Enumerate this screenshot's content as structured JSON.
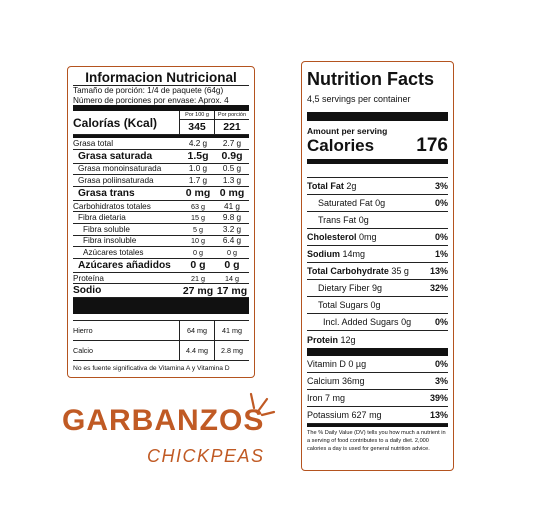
{
  "spanish_label": {
    "title": "Informacion Nutricional",
    "serving_size": "Tamaño de porción: 1/4 de paquete (64g)",
    "servings_per_container": "Número de porciones por envase:  Aprox. 4",
    "calories": {
      "label": "Calorías (Kcal)",
      "col1_header": "Por 100 g",
      "col2_header": "Por porción",
      "per_100g": "345",
      "per_serving": "221"
    },
    "rows": [
      {
        "name": "Grasa total",
        "per_100g": "4.2 g",
        "per_serving": "2.7 g"
      },
      {
        "name": "Grasa saturada",
        "per_100g": "1.5g",
        "per_serving": "0.9g"
      },
      {
        "name": "Grasa monoinsaturada",
        "per_100g": "1.0 g",
        "per_serving": "0.5 g"
      },
      {
        "name": "Grasa poliinsaturada",
        "per_100g": "1.7 g",
        "per_serving": "1.3 g"
      },
      {
        "name": "Grasa trans",
        "per_100g": "0 mg",
        "per_serving": "0 mg"
      },
      {
        "name": "Carbohidratos totales",
        "per_100g": "63 g",
        "per_serving": "41 g"
      },
      {
        "name": "Fibra dietaria",
        "per_100g": "15 g",
        "per_serving": "9.8 g"
      },
      {
        "name": "Fibra soluble",
        "per_100g": "5 g",
        "per_serving": "3.2 g"
      },
      {
        "name": "Fibra insoluble",
        "per_100g": "10 g",
        "per_serving": "6.4 g"
      },
      {
        "name": "Azúcares totales",
        "per_100g": "0 g",
        "per_serving": "0 g"
      },
      {
        "name": "Azúcares añadidos",
        "per_100g": "0 g",
        "per_serving": "0 g"
      },
      {
        "name": "Proteína",
        "per_100g": "21 g",
        "per_serving": "14 g"
      },
      {
        "name": "Sodio",
        "per_100g": "27 mg",
        "per_serving": "17 mg"
      }
    ],
    "minerals": [
      {
        "name": "Hierro",
        "per_100g": "64 mg",
        "per_serving": "41 mg"
      },
      {
        "name": "Calcio",
        "per_100g": "4.4 mg",
        "per_serving": "2.8 mg"
      }
    ],
    "footnote": "No es fuente significativa de Vitamina A y Vitamina D"
  },
  "english_label": {
    "title": "Nutrition Facts",
    "servings": "4,5 servings  per container",
    "amount_per_serving": "Amount per serving",
    "calories_label": "Calories",
    "calories_value": "176",
    "rows": [
      {
        "name": "Total Fat",
        "amount": "2g",
        "pct": "3%"
      },
      {
        "name": "Saturated Fat",
        "amount": "0g",
        "pct": "0%"
      },
      {
        "name": "Trans Fat",
        "amount": "0g",
        "pct": ""
      },
      {
        "name": "Cholesterol",
        "amount": "0mg",
        "pct": "0%"
      },
      {
        "name": "Sodium",
        "amount": "14mg",
        "pct": "1%"
      },
      {
        "name": "Total Carbohydrate",
        "amount": "35 g",
        "pct": "13%"
      },
      {
        "name": "Dietary Fiber",
        "amount": "9g",
        "pct": "32%"
      },
      {
        "name": "Total Sugars",
        "amount": "0g",
        "pct": ""
      },
      {
        "name": "Incl. Added Sugars",
        "amount": "0g",
        "pct": "0%"
      },
      {
        "name": "Protein",
        "amount": "12g",
        "pct": ""
      }
    ],
    "vitamins": [
      {
        "name": "Vitamin D",
        "amount": "0 µg",
        "pct": "0%"
      },
      {
        "name": "Calcium",
        "amount": "36mg",
        "pct": "3%"
      },
      {
        "name": "Iron",
        "amount": "7 mg",
        "pct": "39%"
      },
      {
        "name": "Potassium",
        "amount": "627 mg",
        "pct": "13%"
      }
    ],
    "footnote": "The % Daily Value (DV) tells you how much a nutrient in a serving of food contributes to a daily diet. 2,000 calories a day is used for general nutrition advice."
  },
  "brand": {
    "title": "GARBANZOS",
    "subtitle": "CHICKPEAS",
    "accent_color": "#c05a24"
  }
}
